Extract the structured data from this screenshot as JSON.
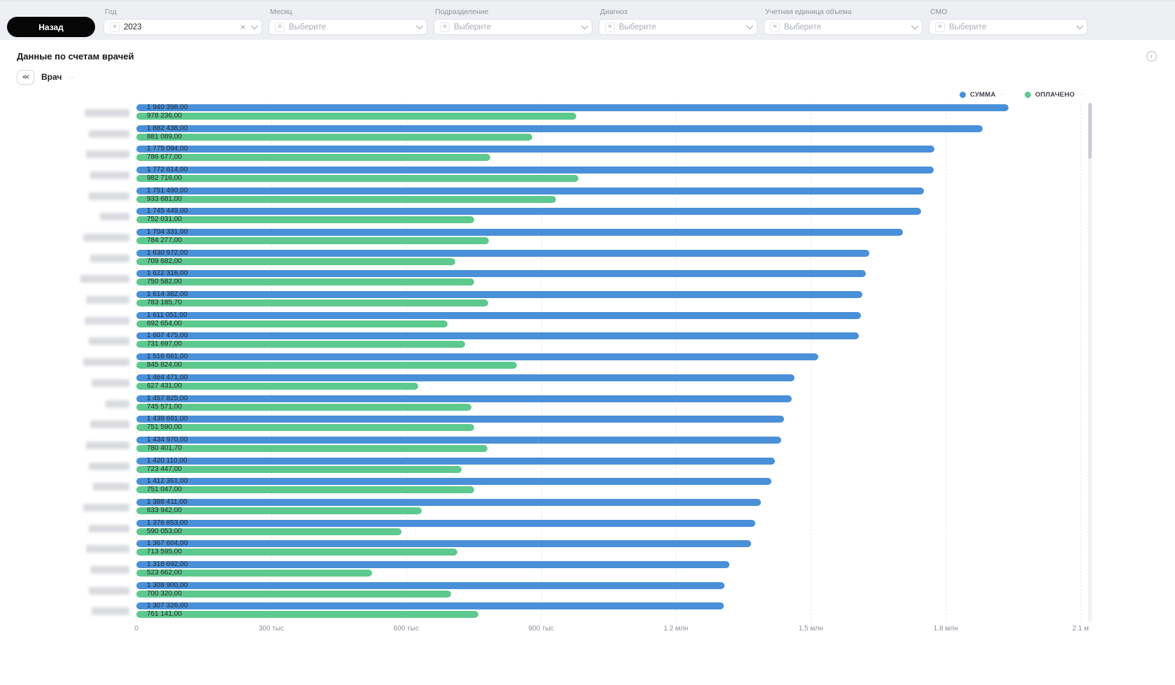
{
  "topbar": {
    "back_label": "Назад",
    "operator_icon": "=",
    "clear_icon": "×",
    "filters": [
      {
        "label": "Год",
        "value": "2023",
        "placeholder": "",
        "clearable": true
      },
      {
        "label": "Месяц",
        "value": "",
        "placeholder": "Выберите"
      },
      {
        "label": "Подразделение",
        "value": "",
        "placeholder": "Выберите"
      },
      {
        "label": "Диагноз",
        "value": "",
        "placeholder": "Выберите"
      },
      {
        "label": "Учетная единица объема",
        "value": "",
        "placeholder": "Выберите"
      },
      {
        "label": "СМО",
        "value": "",
        "placeholder": "Выберите"
      }
    ]
  },
  "card": {
    "title": "Данные по счетам врачей",
    "collapse_icon": "<<",
    "axis_toggle_label": "Врач",
    "more_dots": "··"
  },
  "legend": [
    {
      "label": "СУММА",
      "color": "#4a90d9"
    },
    {
      "label": "ОПЛАЧЕНО",
      "color": "#5ec98e"
    }
  ],
  "colors": {
    "sum_bar": "#4a90d9",
    "paid_bar": "#5ec98e",
    "grid": "#e7e9ee",
    "axis_text": "#8a9099",
    "bar_label": "#23272d"
  },
  "chart_data": {
    "type": "bar",
    "orientation": "horizontal",
    "title": "Данные по счетам врачей",
    "y_dimension": "Врач",
    "series": [
      "СУММА",
      "ОПЛАЧЕНО"
    ],
    "x_max": 2100000,
    "x_ticks": [
      "0",
      "300 тыс",
      "600 тыс",
      "900 тыс",
      "1.2 млн",
      "1.5 млн",
      "1.8 млн",
      "2.1 м"
    ],
    "note_categories": "doctor names are redacted (blurred) in the source image",
    "rows": [
      {
        "sum": "1 940 398,00",
        "paid": "978 236,00"
      },
      {
        "sum": "1 882 438,00",
        "paid": "881 089,00"
      },
      {
        "sum": "1 775 094,00",
        "paid": "786 677,00"
      },
      {
        "sum": "1 772 614,00",
        "paid": "982 716,00"
      },
      {
        "sum": "1 751 490,00",
        "paid": "933 681,00"
      },
      {
        "sum": "1 745 449,00",
        "paid": "752 031,00"
      },
      {
        "sum": "1 704 331,00",
        "paid": "784 277,00"
      },
      {
        "sum": "1 630 972,00",
        "paid": "709 682,00"
      },
      {
        "sum": "1 622 316,00",
        "paid": "750 582,00"
      },
      {
        "sum": "1 614 382,00",
        "paid": "783 185,70"
      },
      {
        "sum": "1 611 051,00",
        "paid": "692 654,00"
      },
      {
        "sum": "1 607 475,00",
        "paid": "731 697,00"
      },
      {
        "sum": "1 516 661,00",
        "paid": "845 824,00"
      },
      {
        "sum": "1 464 471,00",
        "paid": "627 431,00"
      },
      {
        "sum": "1 457 825,00",
        "paid": "745 571,00"
      },
      {
        "sum": "1 439 691,00",
        "paid": "751 590,00"
      },
      {
        "sum": "1 434 970,00",
        "paid": "780 401,70"
      },
      {
        "sum": "1 420 110,00",
        "paid": "723 447,00"
      },
      {
        "sum": "1 412 361,00",
        "paid": "751 047,00"
      },
      {
        "sum": "1 388 411,00",
        "paid": "633 942,00"
      },
      {
        "sum": "1 376 853,00",
        "paid": "590 053,00"
      },
      {
        "sum": "1 367 604,00",
        "paid": "713 595,00"
      },
      {
        "sum": "1 318 692,00",
        "paid": "523 662,00"
      },
      {
        "sum": "1 308 900,00",
        "paid": "700 320,00"
      },
      {
        "sum": "1 307 326,00",
        "paid": "761 141,00"
      }
    ]
  }
}
